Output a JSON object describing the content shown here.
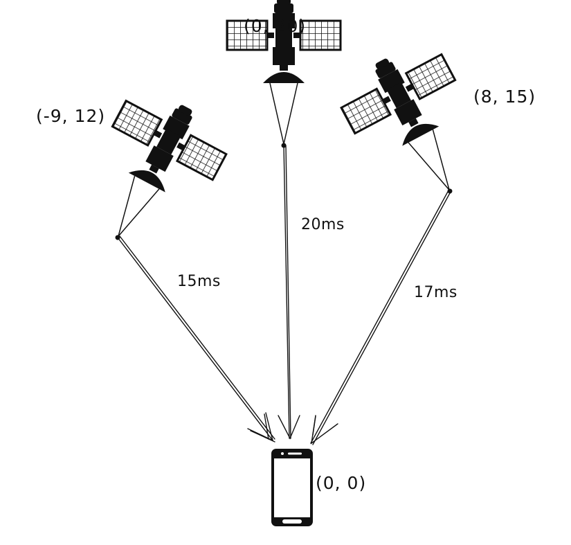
{
  "satellites": [
    {
      "id": "left",
      "coord_label": "(-9, 12)"
    },
    {
      "id": "center",
      "coord_label": "(0, 20)"
    },
    {
      "id": "right",
      "coord_label": "(8, 15)"
    }
  ],
  "phone": {
    "coord_label": "(0, 0)"
  },
  "links": [
    {
      "from": "left",
      "latency_label": "15ms"
    },
    {
      "from": "center",
      "latency_label": "20ms"
    },
    {
      "from": "right",
      "latency_label": "17ms"
    }
  ],
  "colors": {
    "ink": "#111111",
    "panel": "#ffffff",
    "background": "#ffffff"
  },
  "icons": [
    "satellite-icon",
    "smartphone-icon",
    "arrow-icon"
  ]
}
